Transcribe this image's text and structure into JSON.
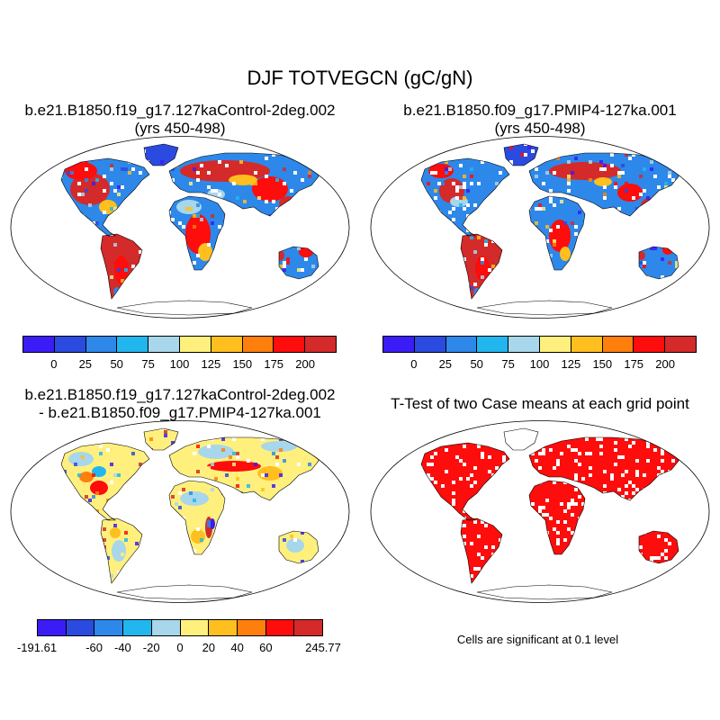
{
  "title": "DJF TOTVEGCN (gC/gN)",
  "panels": [
    {
      "line1": "b.e21.B1850.f19_g17.127kaControl-2deg.002",
      "line2": "(yrs 450-498)"
    },
    {
      "line1": "b.e21.B1850.f09_g17.PMIP4-127ka.001",
      "line2": "(yrs 450-498)"
    },
    {
      "line1": "b.e21.B1850.f19_g17.127kaControl-2deg.002",
      "line2": "- b.e21.B1850.f09_g17.PMIP4-127ka.001"
    },
    {
      "line1": "T-Test of two Case means at each grid point",
      "line2": ""
    }
  ],
  "colorbars": {
    "abs": {
      "labels": [
        "0",
        "25",
        "50",
        "75",
        "100",
        "125",
        "150",
        "175",
        "200"
      ],
      "colors": [
        "#3b1cf6",
        "#2b4be0",
        "#2d88ea",
        "#22b6ee",
        "#a8d6ea",
        "#fff07e",
        "#ffbf1e",
        "#ff7f0d",
        "#ff0c0c",
        "#d42a2a"
      ]
    },
    "diff": {
      "labels": [
        "-191.61",
        "-60",
        "-40",
        "-20",
        "0",
        "20",
        "40",
        "60",
        "245.77"
      ],
      "colors": [
        "#3b1cf6",
        "#2b4be0",
        "#2d88ea",
        "#22b6ee",
        "#a8d6ea",
        "#fff07e",
        "#ffbf1e",
        "#ff7f0d",
        "#ff0c0c",
        "#d42a2a"
      ]
    }
  },
  "significance_note": "Cells are significant at 0.1 level"
}
